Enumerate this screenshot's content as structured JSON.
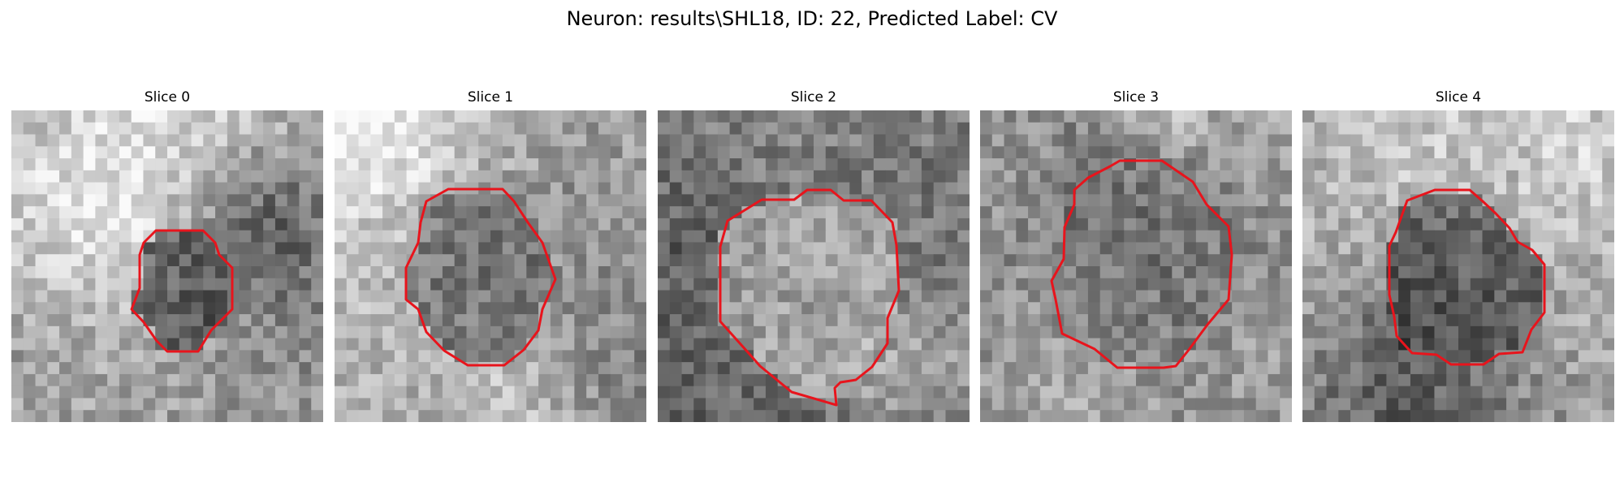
{
  "figure": {
    "title": "Neuron: results\\SHL18, ID: 22, Predicted Label: CV"
  },
  "slices": [
    {
      "title": "Slice 0",
      "mean_intensity": 0.62,
      "roi_intensity": 0.22
    },
    {
      "title": "Slice 1",
      "mean_intensity": 0.64,
      "roi_intensity": 0.38
    },
    {
      "title": "Slice 2",
      "mean_intensity": 0.5,
      "roi_intensity": 0.72
    },
    {
      "title": "Slice 3",
      "mean_intensity": 0.52,
      "roi_intensity": 0.48
    },
    {
      "title": "Slice 4",
      "mean_intensity": 0.64,
      "roi_intensity": 0.24
    }
  ],
  "colors": {
    "contour": "#e8141c",
    "background": "#ffffff"
  }
}
